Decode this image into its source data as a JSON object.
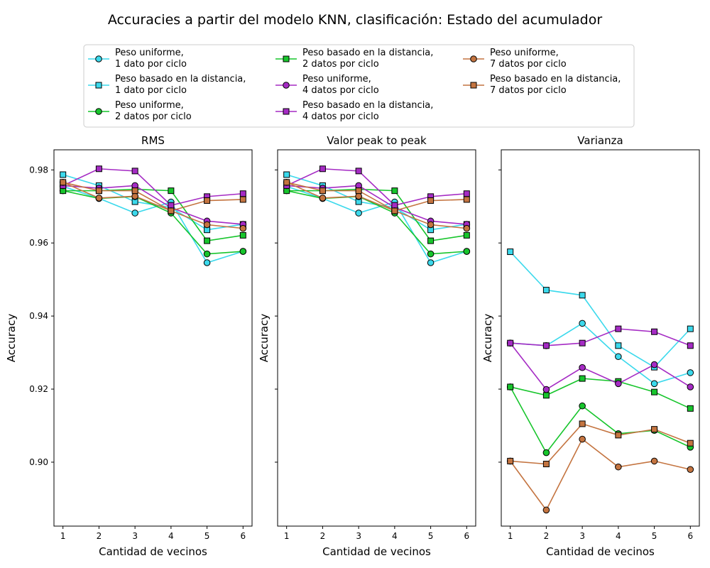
{
  "figure_title": "Accuracies a partir del modelo KNN, clasificación: Estado del acumulador",
  "colors": {
    "peso_1": "#3bd9ec",
    "peso_2": "#17c52c",
    "peso_4": "#a52bc4",
    "peso_7": "#c47440"
  },
  "chart_data": [
    {
      "type": "line",
      "title": "RMS",
      "xlabel": "Cantidad de vecinos",
      "ylabel": "Accuracy",
      "x": [
        1,
        2,
        3,
        4,
        5,
        6
      ],
      "xlim": [
        0.75,
        6.25
      ],
      "ylim": [
        0.8825,
        0.9855
      ],
      "yticks": [
        0.9,
        0.92,
        0.94,
        0.96,
        0.98
      ],
      "grid": false,
      "series": [
        {
          "name": "Peso uniforme,\n1 dato por ciclo",
          "color": "#3bd9ec",
          "marker": "circle",
          "values": [
            0.9755,
            0.9722,
            0.9682,
            0.9712,
            0.9546,
            0.9577
          ]
        },
        {
          "name": "Peso basado en la distancia,\n1 dato por ciclo",
          "color": "#3bd9ec",
          "marker": "square",
          "values": [
            0.9787,
            0.9757,
            0.9713,
            0.9697,
            0.9636,
            0.9651
          ]
        },
        {
          "name": "Peso uniforme,\n2 datos por ciclo",
          "color": "#17c52c",
          "marker": "circle",
          "values": [
            0.9743,
            0.9722,
            0.9727,
            0.9682,
            0.957,
            0.9577
          ]
        },
        {
          "name": "Peso basado en la distancia,\n2 datos por ciclo",
          "color": "#17c52c",
          "marker": "square",
          "values": [
            0.9743,
            0.9743,
            0.9747,
            0.9743,
            0.9606,
            0.9621
          ]
        },
        {
          "name": "Peso uniforme,\n4 datos por ciclo",
          "color": "#a52bc4",
          "marker": "circle",
          "values": [
            0.9757,
            0.975,
            0.9757,
            0.9697,
            0.966,
            0.9651
          ]
        },
        {
          "name": "Peso basado en la distancia,\n4 datos por ciclo",
          "color": "#a52bc4",
          "marker": "square",
          "values": [
            0.9757,
            0.9803,
            0.9797,
            0.9703,
            0.9727,
            0.9735
          ]
        },
        {
          "name": "Peso uniforme,\n7 datos por ciclo",
          "color": "#c47440",
          "marker": "circle",
          "values": [
            0.9766,
            0.9723,
            0.9728,
            0.9688,
            0.965,
            0.964
          ]
        },
        {
          "name": "Peso basado en la distancia,\n7 datos por ciclo",
          "color": "#c47440",
          "marker": "square",
          "values": [
            0.9766,
            0.9743,
            0.9743,
            0.9688,
            0.9716,
            0.9719
          ]
        }
      ]
    },
    {
      "type": "line",
      "title": "Valor peak to peak",
      "xlabel": "Cantidad de vecinos",
      "ylabel": "Accuracy",
      "x": [
        1,
        2,
        3,
        4,
        5,
        6
      ],
      "xlim": [
        0.75,
        6.25
      ],
      "ylim": [
        0.8825,
        0.9855
      ],
      "yticks": [
        0.9,
        0.92,
        0.94,
        0.96,
        0.98
      ],
      "grid": false,
      "series": [
        {
          "name": "Peso uniforme,\n1 dato por ciclo",
          "color": "#3bd9ec",
          "marker": "circle",
          "values": [
            0.9755,
            0.9722,
            0.9682,
            0.9712,
            0.9546,
            0.9577
          ]
        },
        {
          "name": "Peso basado en la distancia,\n1 dato por ciclo",
          "color": "#3bd9ec",
          "marker": "square",
          "values": [
            0.9787,
            0.9757,
            0.9713,
            0.9697,
            0.9636,
            0.9651
          ]
        },
        {
          "name": "Peso uniforme,\n2 datos por ciclo",
          "color": "#17c52c",
          "marker": "circle",
          "values": [
            0.9743,
            0.9722,
            0.9727,
            0.9682,
            0.957,
            0.9577
          ]
        },
        {
          "name": "Peso basado en la distancia,\n2 datos por ciclo",
          "color": "#17c52c",
          "marker": "square",
          "values": [
            0.9743,
            0.9743,
            0.9747,
            0.9743,
            0.9606,
            0.9621
          ]
        },
        {
          "name": "Peso uniforme,\n4 datos por ciclo",
          "color": "#a52bc4",
          "marker": "circle",
          "values": [
            0.9757,
            0.975,
            0.9757,
            0.9697,
            0.966,
            0.9651
          ]
        },
        {
          "name": "Peso basado en la distancia,\n4 datos por ciclo",
          "color": "#a52bc4",
          "marker": "square",
          "values": [
            0.9757,
            0.9803,
            0.9797,
            0.9703,
            0.9727,
            0.9735
          ]
        },
        {
          "name": "Peso uniforme,\n7 datos por ciclo",
          "color": "#c47440",
          "marker": "circle",
          "values": [
            0.9766,
            0.9723,
            0.9728,
            0.9688,
            0.965,
            0.964
          ]
        },
        {
          "name": "Peso basado en la distancia,\n7 datos por ciclo",
          "color": "#c47440",
          "marker": "square",
          "values": [
            0.9766,
            0.9743,
            0.9743,
            0.9688,
            0.9716,
            0.9719
          ]
        }
      ]
    },
    {
      "type": "line",
      "title": "Varianza",
      "xlabel": "Cantidad de vecinos",
      "ylabel": "Accuracy",
      "x": [
        1,
        2,
        3,
        4,
        5,
        6
      ],
      "xlim": [
        0.75,
        6.25
      ],
      "ylim": [
        0.8825,
        0.9855
      ],
      "yticks": [
        0.9,
        0.92,
        0.94,
        0.96,
        0.98
      ],
      "grid": false,
      "series": [
        {
          "name": "Peso uniforme,\n1 dato por ciclo",
          "color": "#3bd9ec",
          "marker": "circle",
          "values": [
            0.9326,
            0.9319,
            0.938,
            0.9289,
            0.9215,
            0.9245
          ]
        },
        {
          "name": "Peso basado en la distancia,\n1 dato por ciclo",
          "color": "#3bd9ec",
          "marker": "square",
          "values": [
            0.9576,
            0.9471,
            0.9457,
            0.9319,
            0.926,
            0.9365
          ]
        },
        {
          "name": "Peso uniforme,\n2 datos por ciclo",
          "color": "#17c52c",
          "marker": "circle",
          "values": [
            0.9206,
            0.9026,
            0.9154,
            0.9078,
            0.9087,
            0.9041
          ]
        },
        {
          "name": "Peso basado en la distancia,\n2 datos por ciclo",
          "color": "#17c52c",
          "marker": "square",
          "values": [
            0.9206,
            0.9183,
            0.9229,
            0.9221,
            0.9192,
            0.9147
          ]
        },
        {
          "name": "Peso uniforme,\n4 datos por ciclo",
          "color": "#a52bc4",
          "marker": "circle",
          "values": [
            0.9326,
            0.9199,
            0.9259,
            0.9215,
            0.9267,
            0.9206
          ]
        },
        {
          "name": "Peso basado en la distancia,\n4 datos por ciclo",
          "color": "#a52bc4",
          "marker": "square",
          "values": [
            0.9326,
            0.9319,
            0.9326,
            0.9365,
            0.9357,
            0.9319
          ]
        },
        {
          "name": "Peso uniforme,\n7 datos por ciclo",
          "color": "#c47440",
          "marker": "circle",
          "values": [
            0.9003,
            0.8869,
            0.9063,
            0.8987,
            0.9003,
            0.898
          ]
        },
        {
          "name": "Peso basado en la distancia,\n7 datos por ciclo",
          "color": "#c47440",
          "marker": "square",
          "values": [
            0.9003,
            0.8995,
            0.9105,
            0.9074,
            0.909,
            0.9052
          ]
        }
      ]
    }
  ]
}
